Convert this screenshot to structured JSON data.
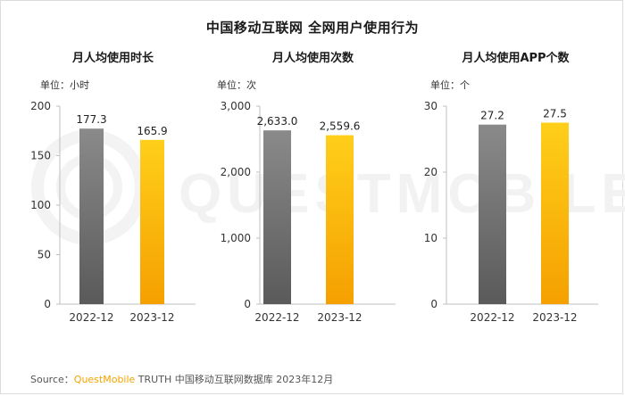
{
  "title": "中国移动互联网 全网用户使用行为",
  "watermark_text": "QUESTMOBILE",
  "colors": {
    "bar_2022_top": "#8a8a8a",
    "bar_2022_bottom": "#5a5a5a",
    "bar_2023_top": "#ffcf1a",
    "bar_2023_bottom": "#f5a000",
    "brand": "#f5a300"
  },
  "source": {
    "prefix": "Source：",
    "brand": "QuestMobile",
    "rest": " TRUTH 中国移动互联网数据库 2023年12月"
  },
  "chart_data": [
    {
      "type": "bar",
      "title": "月人均使用时长",
      "unit_label": "单位：小时",
      "categories": [
        "2022-12",
        "2023-12"
      ],
      "values": [
        177.3,
        165.9
      ],
      "value_labels": [
        "177.3",
        "165.9"
      ],
      "ylim": [
        0,
        200
      ],
      "yticks": [
        0,
        50,
        100,
        150,
        200
      ],
      "ytick_labels": [
        "0",
        "50",
        "100",
        "150",
        "200"
      ]
    },
    {
      "type": "bar",
      "title": "月人均使用次数",
      "unit_label": "单位：次",
      "categories": [
        "2022-12",
        "2023-12"
      ],
      "values": [
        2633.0,
        2559.6
      ],
      "value_labels": [
        "2,633.0",
        "2,559.6"
      ],
      "ylim": [
        0,
        3000
      ],
      "yticks": [
        0,
        1000,
        2000,
        3000
      ],
      "ytick_labels": [
        "0",
        "1,000",
        "2,000",
        "3,000"
      ]
    },
    {
      "type": "bar",
      "title": "月人均使用APP个数",
      "unit_label": "单位：个",
      "categories": [
        "2022-12",
        "2023-12"
      ],
      "values": [
        27.2,
        27.5
      ],
      "value_labels": [
        "27.2",
        "27.5"
      ],
      "ylim": [
        0,
        30
      ],
      "yticks": [
        0,
        10,
        20,
        30
      ],
      "ytick_labels": [
        "0",
        "10",
        "20",
        "30"
      ]
    }
  ]
}
